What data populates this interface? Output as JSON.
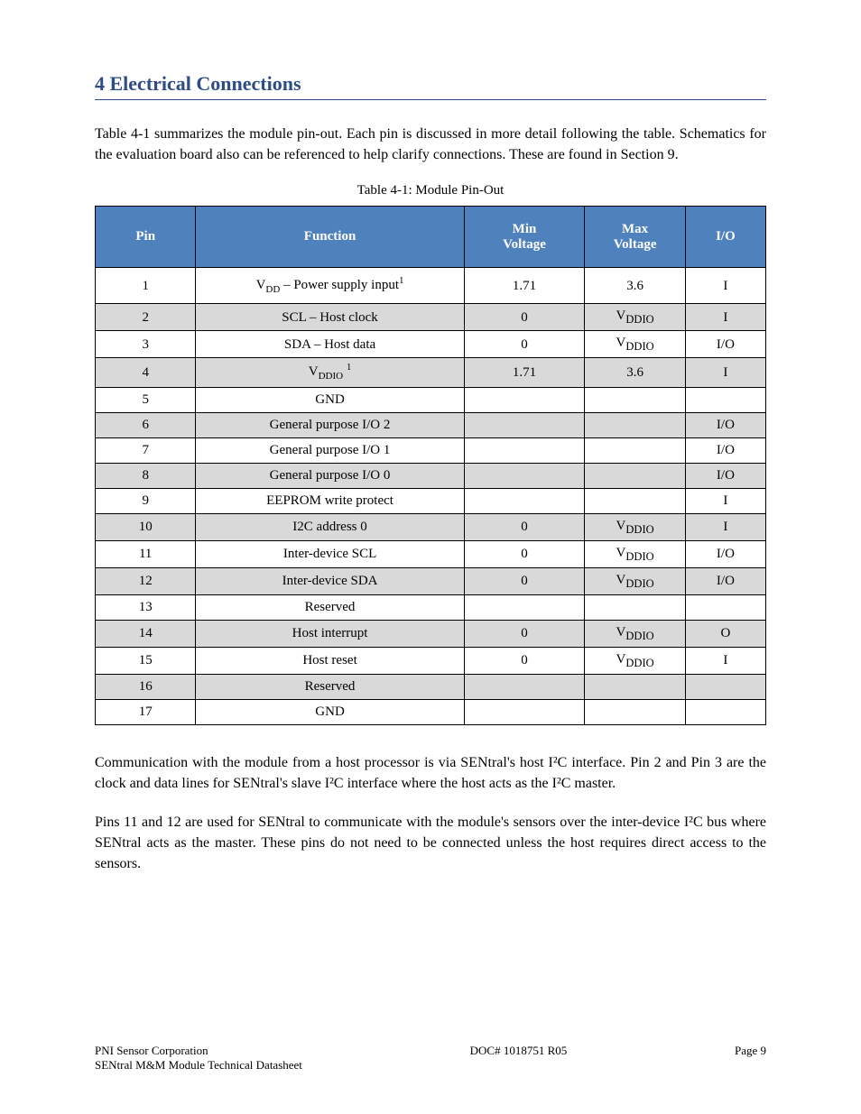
{
  "heading": "4 Electrical Connections",
  "intro": "Table 4-1 summarizes the module pin-out. Each pin is discussed in more detail following the table. Schematics for the evaluation board also can be referenced to help clarify connections. These are found in Section 9.",
  "tableCaption": "Table 4-1: Module Pin-Out",
  "columns": [
    "Pin",
    "Function",
    "Min\nVoltage",
    "Max\nVoltage",
    "I/O"
  ],
  "rows": [
    {
      "c0": "1",
      "c1_html": "V<span class=\"sub\">DD</span> – Power supply input<span class=\"sup\">1</span>",
      "c2": "1.71",
      "c3": "3.6",
      "c4": "I"
    },
    {
      "c0": "2",
      "c1_html": "SCL – Host clock",
      "c2": "0",
      "c3": "V<sub>DDIO</sub>",
      "c4": "I"
    },
    {
      "c0": "3",
      "c1_html": "SDA – Host data",
      "c2": "0",
      "c3": "V<sub>DDIO</sub>",
      "c4": "I/O"
    },
    {
      "c0": "4",
      "c1_html": "V<span class=\"sub\">DDIO</span> <span class=\"sup\">1</span>",
      "c2": "1.71",
      "c3": "3.6",
      "c4": "I"
    },
    {
      "c0": "5",
      "c1_html": "GND",
      "c2": "",
      "c3": "",
      "c4": ""
    },
    {
      "c0": "6",
      "c1_html": "General purpose I/O 2",
      "c2": "",
      "c3": "",
      "c4": "I/O"
    },
    {
      "c0": "7",
      "c1_html": "General purpose I/O 1",
      "c2": "",
      "c3": "",
      "c4": "I/O"
    },
    {
      "c0": "8",
      "c1_html": "General purpose I/O 0",
      "c2": "",
      "c3": "",
      "c4": "I/O"
    },
    {
      "c0": "9",
      "c1_html": "EEPROM write protect",
      "c2": "",
      "c3": "",
      "c4": "I"
    },
    {
      "c0": "10",
      "c1_html": "I2C address 0",
      "c2": "0",
      "c3": "V<sub>DDIO</sub>",
      "c4": "I"
    },
    {
      "c0": "11",
      "c1_html": "Inter-device SCL",
      "c2": "0",
      "c3": "V<sub>DDIO</sub>",
      "c4": "I/O"
    },
    {
      "c0": "12",
      "c1_html": "Inter-device SDA",
      "c2": "0",
      "c3": "V<sub>DDIO</sub>",
      "c4": "I/O"
    },
    {
      "c0": "13",
      "c1_html": "Reserved",
      "c2": "",
      "c3": "",
      "c4": ""
    },
    {
      "c0": "14",
      "c1_html": "Host interrupt",
      "c2": "0",
      "c3": "V<sub>DDIO</sub>",
      "c4": "O"
    },
    {
      "c0": "15",
      "c1_html": "Host reset",
      "c2": "0",
      "c3": "V<sub>DDIO</sub>",
      "c4": "I"
    },
    {
      "c0": "16",
      "c1_html": "Reserved",
      "c2": "",
      "c3": "",
      "c4": ""
    },
    {
      "c0": "17",
      "c1_html": "GND",
      "c2": "",
      "c3": "",
      "c4": ""
    }
  ],
  "row_colors": {
    "odd": "#ffffff",
    "even": "#d9d9d9"
  },
  "header_bg": "#4f81bd",
  "para2": "Communication with the module from a host processor is via SENtral's host I²C interface. Pin 2 and Pin 3 are the clock and data lines for SENtral's slave I²C interface where the host acts as the I²C master.",
  "para3": "Pins 11 and 12 are used for SENtral to communicate with the module's sensors over the inter-device I²C bus where SENtral acts as the master. These pins do not need to be connected unless the host requires direct access to the sensors.",
  "footer_left": "PNI Sensor Corporation",
  "footer_center": "DOC# 1018751 R05",
  "footer_right": "Page 9",
  "footer_line2": "SENtral M&M Module Technical Datasheet"
}
